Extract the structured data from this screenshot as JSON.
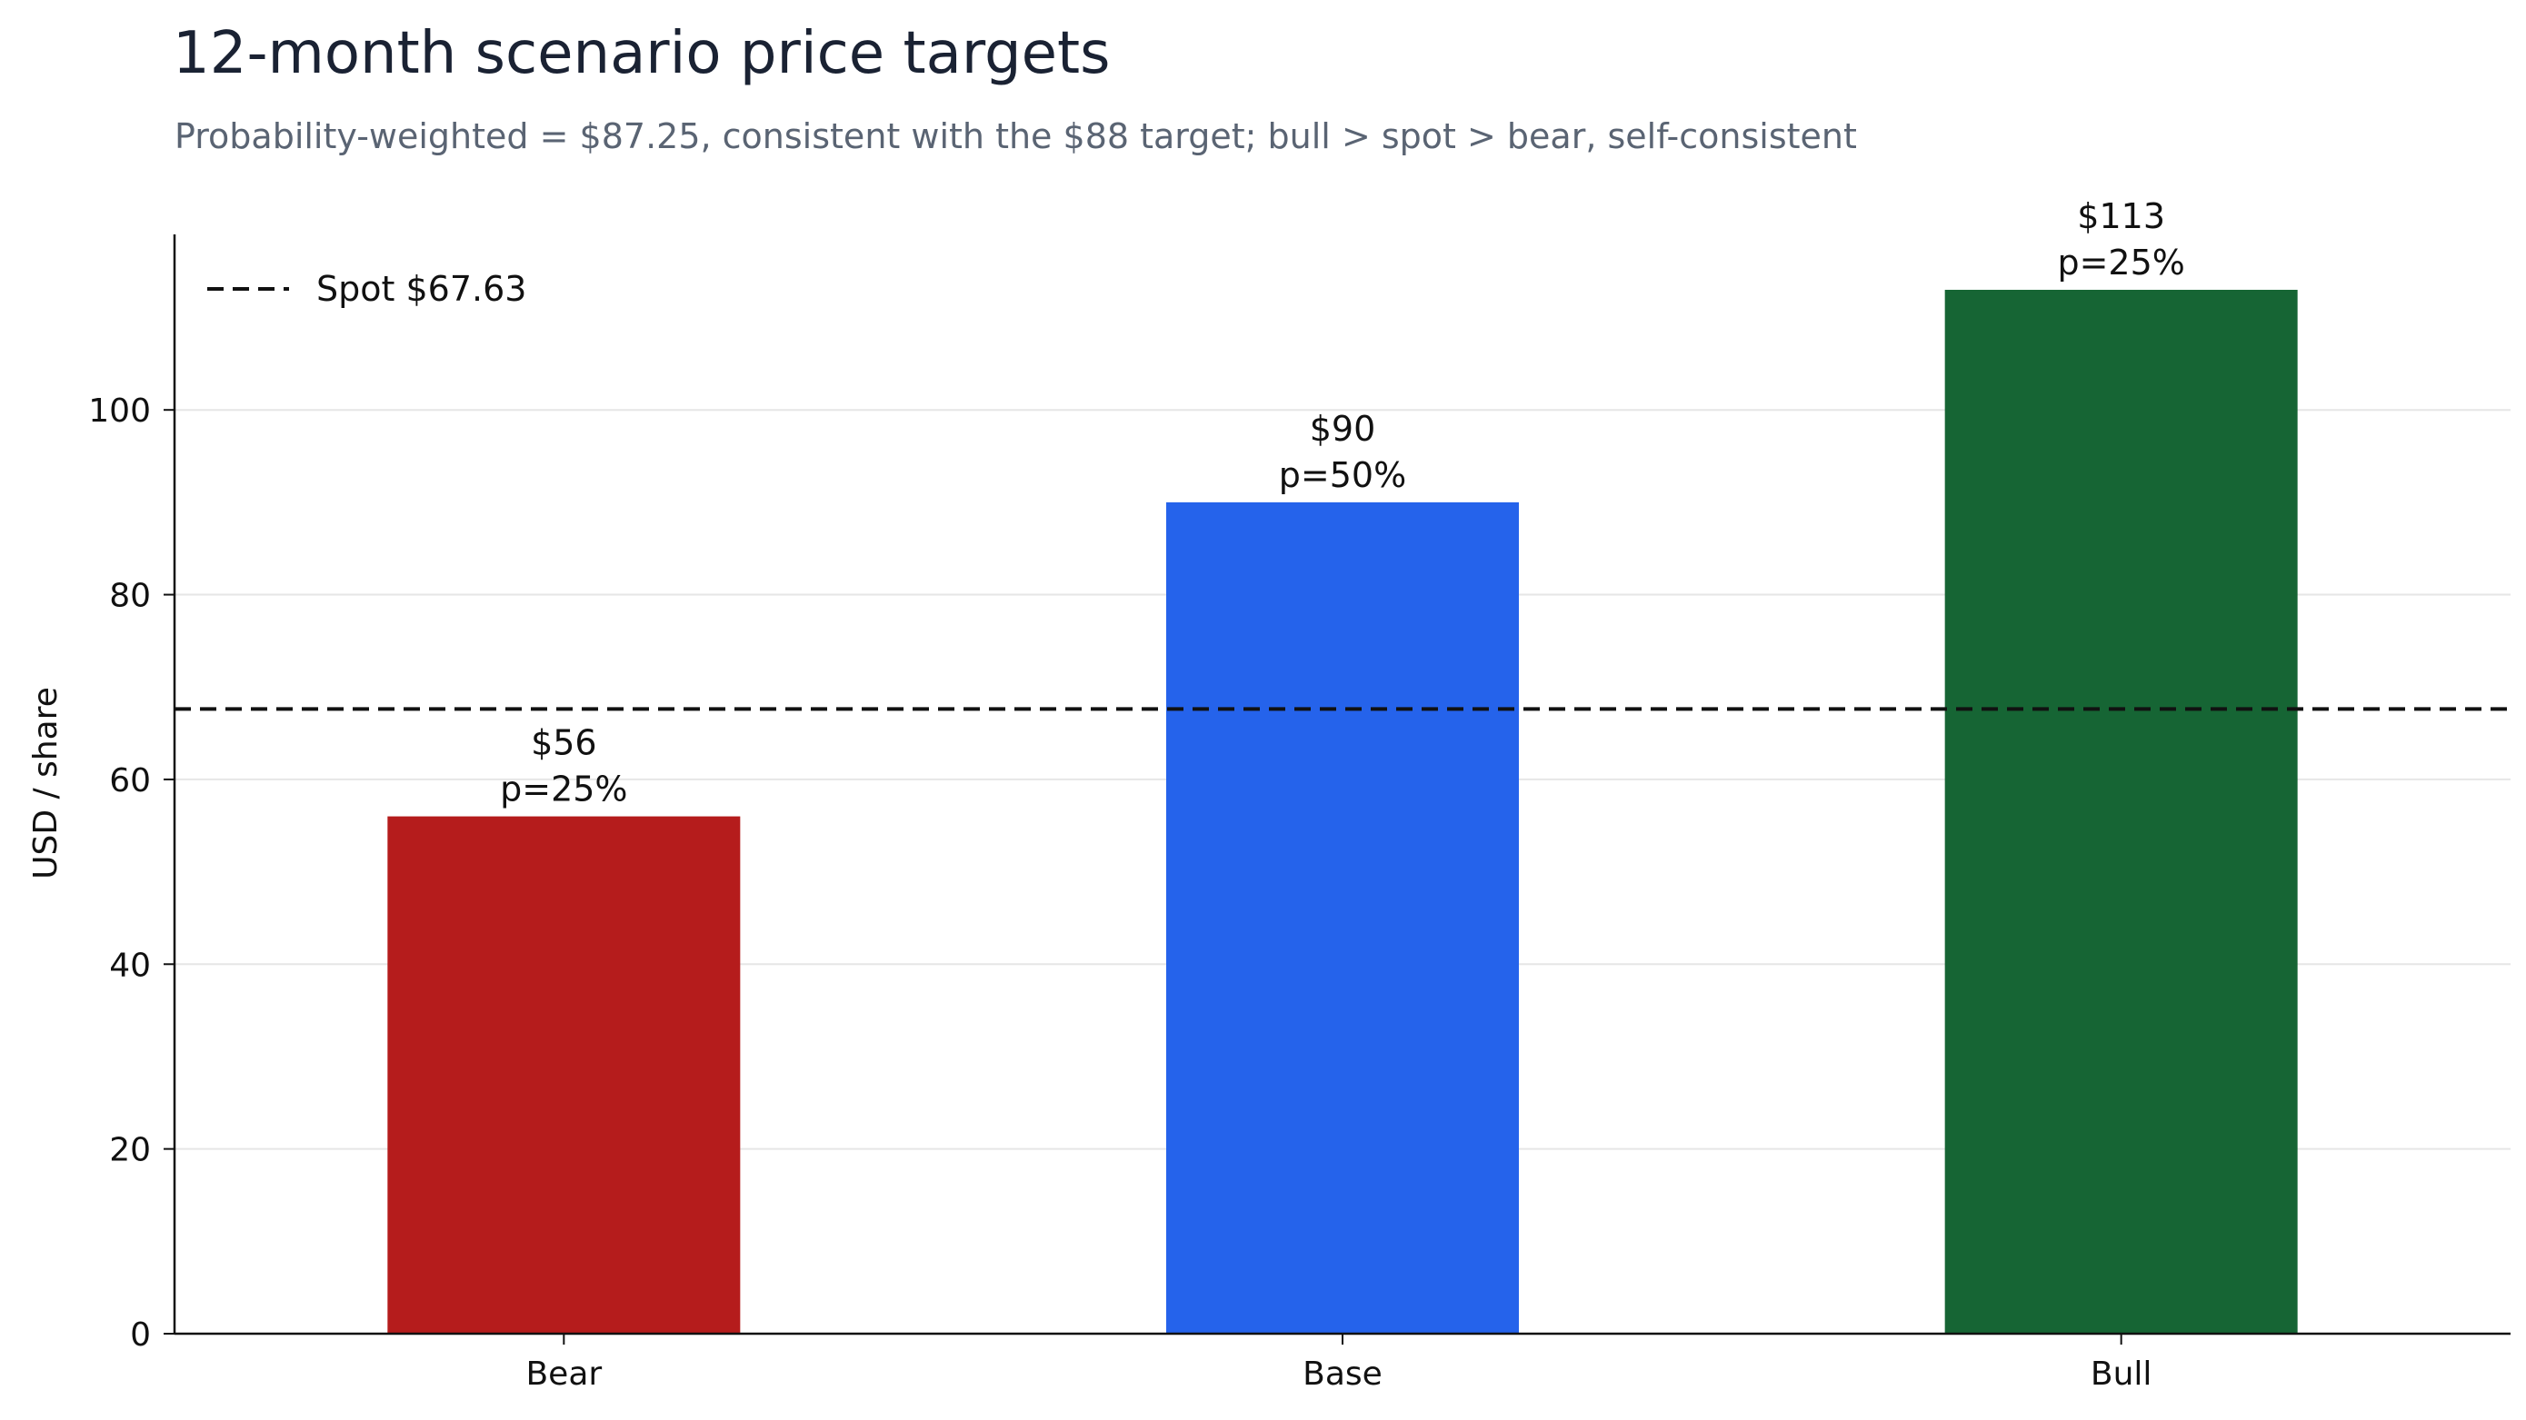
{
  "chart_data": {
    "type": "bar",
    "title": "12-month scenario price targets",
    "subtitle": "Probability-weighted = $87.25, consistent with the $88 target; bull > spot > bear, self-consistent",
    "xlabel": "",
    "ylabel": "USD / share",
    "categories": [
      "Bear",
      "Base",
      "Bull"
    ],
    "values": [
      56,
      90,
      113
    ],
    "value_labels": [
      "$56",
      "$90",
      "$113"
    ],
    "probability_labels": [
      "p=25%",
      "p=50%",
      "p=25%"
    ],
    "colors": [
      "#b51c1c",
      "#2563eb",
      "#166534"
    ],
    "ylim": [
      0,
      119
    ],
    "yticks": [
      0,
      20,
      40,
      60,
      80,
      100
    ],
    "grid": true,
    "reference_line": {
      "value": 67.63,
      "label": "Spot $67.63",
      "style": "dashed",
      "color": "#111111"
    },
    "legend": {
      "position": "top-left",
      "entries": [
        "Spot $67.63"
      ]
    }
  }
}
